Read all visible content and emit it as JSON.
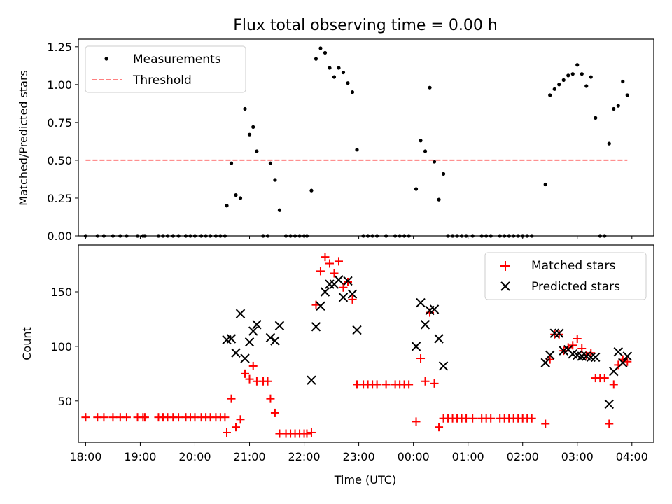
{
  "figure": {
    "title": "Flux total observing time = 0.00 h",
    "xlabel": "Time (UTC)"
  },
  "colors": {
    "measurements": "#000000",
    "threshold": "#ff8080",
    "matched": "#ff0000",
    "predicted": "#000000"
  },
  "chart_data": [
    {
      "type": "scatter",
      "title": "Flux total observing time = 0.00 h",
      "xlabel": "",
      "ylabel": "Matched/Predicted stars",
      "xlim": [
        "17:52",
        "04:24"
      ],
      "ylim": [
        0,
        1.3
      ],
      "yticks": [
        "0.00",
        "0.25",
        "0.50",
        "0.75",
        "1.00",
        "1.25"
      ],
      "grid": false,
      "legend": {
        "position": "top-left",
        "entries": [
          "Measurements",
          "Threshold"
        ]
      },
      "series": [
        {
          "name": "Measurements",
          "marker": "dot",
          "points": [
            [
              "18:00",
              0
            ],
            [
              "18:13",
              0
            ],
            [
              "18:20",
              0
            ],
            [
              "18:30",
              0
            ],
            [
              "18:38",
              0
            ],
            [
              "18:45",
              0
            ],
            [
              "18:57",
              0
            ],
            [
              "19:03",
              0
            ],
            [
              "19:05",
              0
            ],
            [
              "19:20",
              0
            ],
            [
              "19:25",
              0
            ],
            [
              "19:30",
              0
            ],
            [
              "19:36",
              0
            ],
            [
              "19:42",
              0
            ],
            [
              "19:50",
              0
            ],
            [
              "19:55",
              0
            ],
            [
              "20:00",
              0
            ],
            [
              "20:07",
              0
            ],
            [
              "20:12",
              0
            ],
            [
              "20:17",
              0
            ],
            [
              "20:23",
              0
            ],
            [
              "20:28",
              0
            ],
            [
              "20:33",
              0
            ],
            [
              "20:35",
              0.2
            ],
            [
              "20:40",
              0.48
            ],
            [
              "20:45",
              0.27
            ],
            [
              "20:50",
              0.25
            ],
            [
              "20:55",
              0.84
            ],
            [
              "21:00",
              0.67
            ],
            [
              "21:04",
              0.72
            ],
            [
              "21:08",
              0.56
            ],
            [
              "21:15",
              0
            ],
            [
              "21:20",
              0
            ],
            [
              "21:23",
              0.48
            ],
            [
              "21:28",
              0.37
            ],
            [
              "21:33",
              0.17
            ],
            [
              "21:40",
              0
            ],
            [
              "21:45",
              0
            ],
            [
              "21:50",
              0
            ],
            [
              "21:55",
              0
            ],
            [
              "22:00",
              0
            ],
            [
              "22:03",
              0
            ],
            [
              "22:08",
              0.3
            ],
            [
              "22:13",
              1.17
            ],
            [
              "22:18",
              1.24
            ],
            [
              "22:23",
              1.21
            ],
            [
              "22:28",
              1.11
            ],
            [
              "22:33",
              1.05
            ],
            [
              "22:38",
              1.11
            ],
            [
              "22:43",
              1.08
            ],
            [
              "22:48",
              1.01
            ],
            [
              "22:53",
              0.95
            ],
            [
              "22:58",
              0.57
            ],
            [
              "23:05",
              0
            ],
            [
              "23:10",
              0
            ],
            [
              "23:15",
              0
            ],
            [
              "23:20",
              0
            ],
            [
              "23:30",
              0
            ],
            [
              "23:40",
              0
            ],
            [
              "23:45",
              0
            ],
            [
              "23:50",
              0
            ],
            [
              "23:55",
              0
            ],
            [
              "00:03",
              0.31
            ],
            [
              "00:08",
              0.63
            ],
            [
              "00:13",
              0.56
            ],
            [
              "00:18",
              0.98
            ],
            [
              "00:23",
              0.49
            ],
            [
              "00:28",
              0.24
            ],
            [
              "00:33",
              0.41
            ],
            [
              "00:38",
              0
            ],
            [
              "00:43",
              0
            ],
            [
              "00:48",
              0
            ],
            [
              "00:53",
              0
            ],
            [
              "00:58",
              0
            ],
            [
              "01:05",
              0
            ],
            [
              "01:15",
              0
            ],
            [
              "01:20",
              0
            ],
            [
              "01:25",
              0
            ],
            [
              "01:35",
              0
            ],
            [
              "01:40",
              0
            ],
            [
              "01:45",
              0
            ],
            [
              "01:50",
              0
            ],
            [
              "01:55",
              0
            ],
            [
              "02:00",
              0
            ],
            [
              "02:05",
              0
            ],
            [
              "02:10",
              0
            ],
            [
              "02:25",
              0.34
            ],
            [
              "02:30",
              0.93
            ],
            [
              "02:35",
              0.97
            ],
            [
              "02:40",
              1.0
            ],
            [
              "02:45",
              1.03
            ],
            [
              "02:50",
              1.06
            ],
            [
              "02:55",
              1.07
            ],
            [
              "03:00",
              1.13
            ],
            [
              "03:05",
              1.07
            ],
            [
              "03:10",
              0.99
            ],
            [
              "03:15",
              1.05
            ],
            [
              "03:20",
              0.78
            ],
            [
              "03:25",
              0
            ],
            [
              "03:30",
              0
            ],
            [
              "03:35",
              0.61
            ],
            [
              "03:40",
              0.84
            ],
            [
              "03:45",
              0.86
            ],
            [
              "03:50",
              1.02
            ],
            [
              "03:55",
              0.93
            ]
          ]
        },
        {
          "name": "Threshold",
          "marker": "dashed-line",
          "points": [
            [
              "18:00",
              0.5
            ],
            [
              "03:55",
              0.5
            ]
          ]
        }
      ]
    },
    {
      "type": "scatter",
      "xlabel": "Time (UTC)",
      "ylabel": "Count",
      "xlim": [
        "17:52",
        "04:24"
      ],
      "ylim": [
        12,
        193
      ],
      "xticks": [
        "18:00",
        "19:00",
        "20:00",
        "21:00",
        "22:00",
        "23:00",
        "00:00",
        "01:00",
        "02:00",
        "03:00",
        "04:00"
      ],
      "yticks": [
        "50",
        "100",
        "150"
      ],
      "grid": false,
      "legend": {
        "position": "top-right",
        "entries": [
          "Matched stars",
          "Predicted stars"
        ]
      },
      "series": [
        {
          "name": "Matched stars",
          "marker": "plus",
          "points": [
            [
              "18:00",
              35
            ],
            [
              "18:13",
              35
            ],
            [
              "18:20",
              35
            ],
            [
              "18:30",
              35
            ],
            [
              "18:38",
              35
            ],
            [
              "18:45",
              35
            ],
            [
              "18:57",
              35
            ],
            [
              "19:03",
              35
            ],
            [
              "19:05",
              35
            ],
            [
              "19:20",
              35
            ],
            [
              "19:25",
              35
            ],
            [
              "19:30",
              35
            ],
            [
              "19:36",
              35
            ],
            [
              "19:42",
              35
            ],
            [
              "19:50",
              35
            ],
            [
              "19:55",
              35
            ],
            [
              "20:00",
              35
            ],
            [
              "20:07",
              35
            ],
            [
              "20:12",
              35
            ],
            [
              "20:17",
              35
            ],
            [
              "20:23",
              35
            ],
            [
              "20:28",
              35
            ],
            [
              "20:33",
              35
            ],
            [
              "20:35",
              21
            ],
            [
              "20:40",
              52
            ],
            [
              "20:45",
              26
            ],
            [
              "20:50",
              33
            ],
            [
              "20:55",
              75
            ],
            [
              "21:00",
              70
            ],
            [
              "21:04",
              82
            ],
            [
              "21:08",
              68
            ],
            [
              "21:15",
              68
            ],
            [
              "21:20",
              68
            ],
            [
              "21:23",
              52
            ],
            [
              "21:28",
              39
            ],
            [
              "21:33",
              20
            ],
            [
              "21:40",
              20
            ],
            [
              "21:45",
              20
            ],
            [
              "21:50",
              20
            ],
            [
              "21:55",
              20
            ],
            [
              "22:00",
              20
            ],
            [
              "22:03",
              20
            ],
            [
              "22:08",
              21
            ],
            [
              "22:13",
              138
            ],
            [
              "22:18",
              169
            ],
            [
              "22:23",
              182
            ],
            [
              "22:28",
              176
            ],
            [
              "22:33",
              167
            ],
            [
              "22:38",
              178
            ],
            [
              "22:43",
              154
            ],
            [
              "22:48",
              159
            ],
            [
              "22:53",
              143
            ],
            [
              "22:58",
              65
            ],
            [
              "23:05",
              65
            ],
            [
              "23:10",
              65
            ],
            [
              "23:15",
              65
            ],
            [
              "23:20",
              65
            ],
            [
              "23:30",
              65
            ],
            [
              "23:40",
              65
            ],
            [
              "23:45",
              65
            ],
            [
              "23:50",
              65
            ],
            [
              "23:55",
              65
            ],
            [
              "00:03",
              31
            ],
            [
              "00:08",
              89
            ],
            [
              "00:13",
              68
            ],
            [
              "00:18",
              131
            ],
            [
              "00:23",
              66
            ],
            [
              "00:28",
              26
            ],
            [
              "00:33",
              34
            ],
            [
              "00:38",
              34
            ],
            [
              "00:43",
              34
            ],
            [
              "00:48",
              34
            ],
            [
              "00:53",
              34
            ],
            [
              "00:58",
              34
            ],
            [
              "01:05",
              34
            ],
            [
              "01:15",
              34
            ],
            [
              "01:20",
              34
            ],
            [
              "01:25",
              34
            ],
            [
              "01:35",
              34
            ],
            [
              "01:40",
              34
            ],
            [
              "01:45",
              34
            ],
            [
              "01:50",
              34
            ],
            [
              "01:55",
              34
            ],
            [
              "02:00",
              34
            ],
            [
              "02:05",
              34
            ],
            [
              "02:10",
              34
            ],
            [
              "02:25",
              29
            ],
            [
              "02:30",
              88
            ],
            [
              "02:35",
              111
            ],
            [
              "02:40",
              111
            ],
            [
              "02:45",
              96
            ],
            [
              "02:50",
              99
            ],
            [
              "02:55",
              101
            ],
            [
              "03:00",
              107
            ],
            [
              "03:05",
              98
            ],
            [
              "03:10",
              92
            ],
            [
              "03:15",
              94
            ],
            [
              "03:20",
              71
            ],
            [
              "03:25",
              71
            ],
            [
              "03:30",
              71
            ],
            [
              "03:35",
              29
            ],
            [
              "03:40",
              65
            ],
            [
              "03:45",
              83
            ],
            [
              "03:50",
              88
            ],
            [
              "03:55",
              86
            ]
          ]
        },
        {
          "name": "Predicted stars",
          "marker": "x",
          "points": [
            [
              "20:35",
              106
            ],
            [
              "20:40",
              107
            ],
            [
              "20:45",
              94
            ],
            [
              "20:50",
              130
            ],
            [
              "20:55",
              89
            ],
            [
              "21:00",
              104
            ],
            [
              "21:04",
              114
            ],
            [
              "21:08",
              120
            ],
            [
              "21:23",
              108
            ],
            [
              "21:28",
              105
            ],
            [
              "21:33",
              119
            ],
            [
              "22:08",
              69
            ],
            [
              "22:13",
              118
            ],
            [
              "22:18",
              137
            ],
            [
              "22:23",
              150
            ],
            [
              "22:28",
              157
            ],
            [
              "22:33",
              157
            ],
            [
              "22:38",
              161
            ],
            [
              "22:43",
              145
            ],
            [
              "22:48",
              160
            ],
            [
              "22:53",
              148
            ],
            [
              "22:58",
              115
            ],
            [
              "00:03",
              100
            ],
            [
              "00:08",
              140
            ],
            [
              "00:13",
              120
            ],
            [
              "00:18",
              133
            ],
            [
              "00:23",
              134
            ],
            [
              "00:28",
              107
            ],
            [
              "00:33",
              82
            ],
            [
              "02:25",
              85
            ],
            [
              "02:30",
              92
            ],
            [
              "02:35",
              112
            ],
            [
              "02:40",
              112
            ],
            [
              "02:45",
              96
            ],
            [
              "02:50",
              97
            ],
            [
              "02:55",
              93
            ],
            [
              "03:00",
              92
            ],
            [
              "03:05",
              91
            ],
            [
              "03:10",
              91
            ],
            [
              "03:15",
              90
            ],
            [
              "03:20",
              90
            ],
            [
              "03:35",
              47
            ],
            [
              "03:40",
              77
            ],
            [
              "03:45",
              95
            ],
            [
              "03:50",
              85
            ],
            [
              "03:55",
              91
            ]
          ]
        }
      ]
    }
  ]
}
